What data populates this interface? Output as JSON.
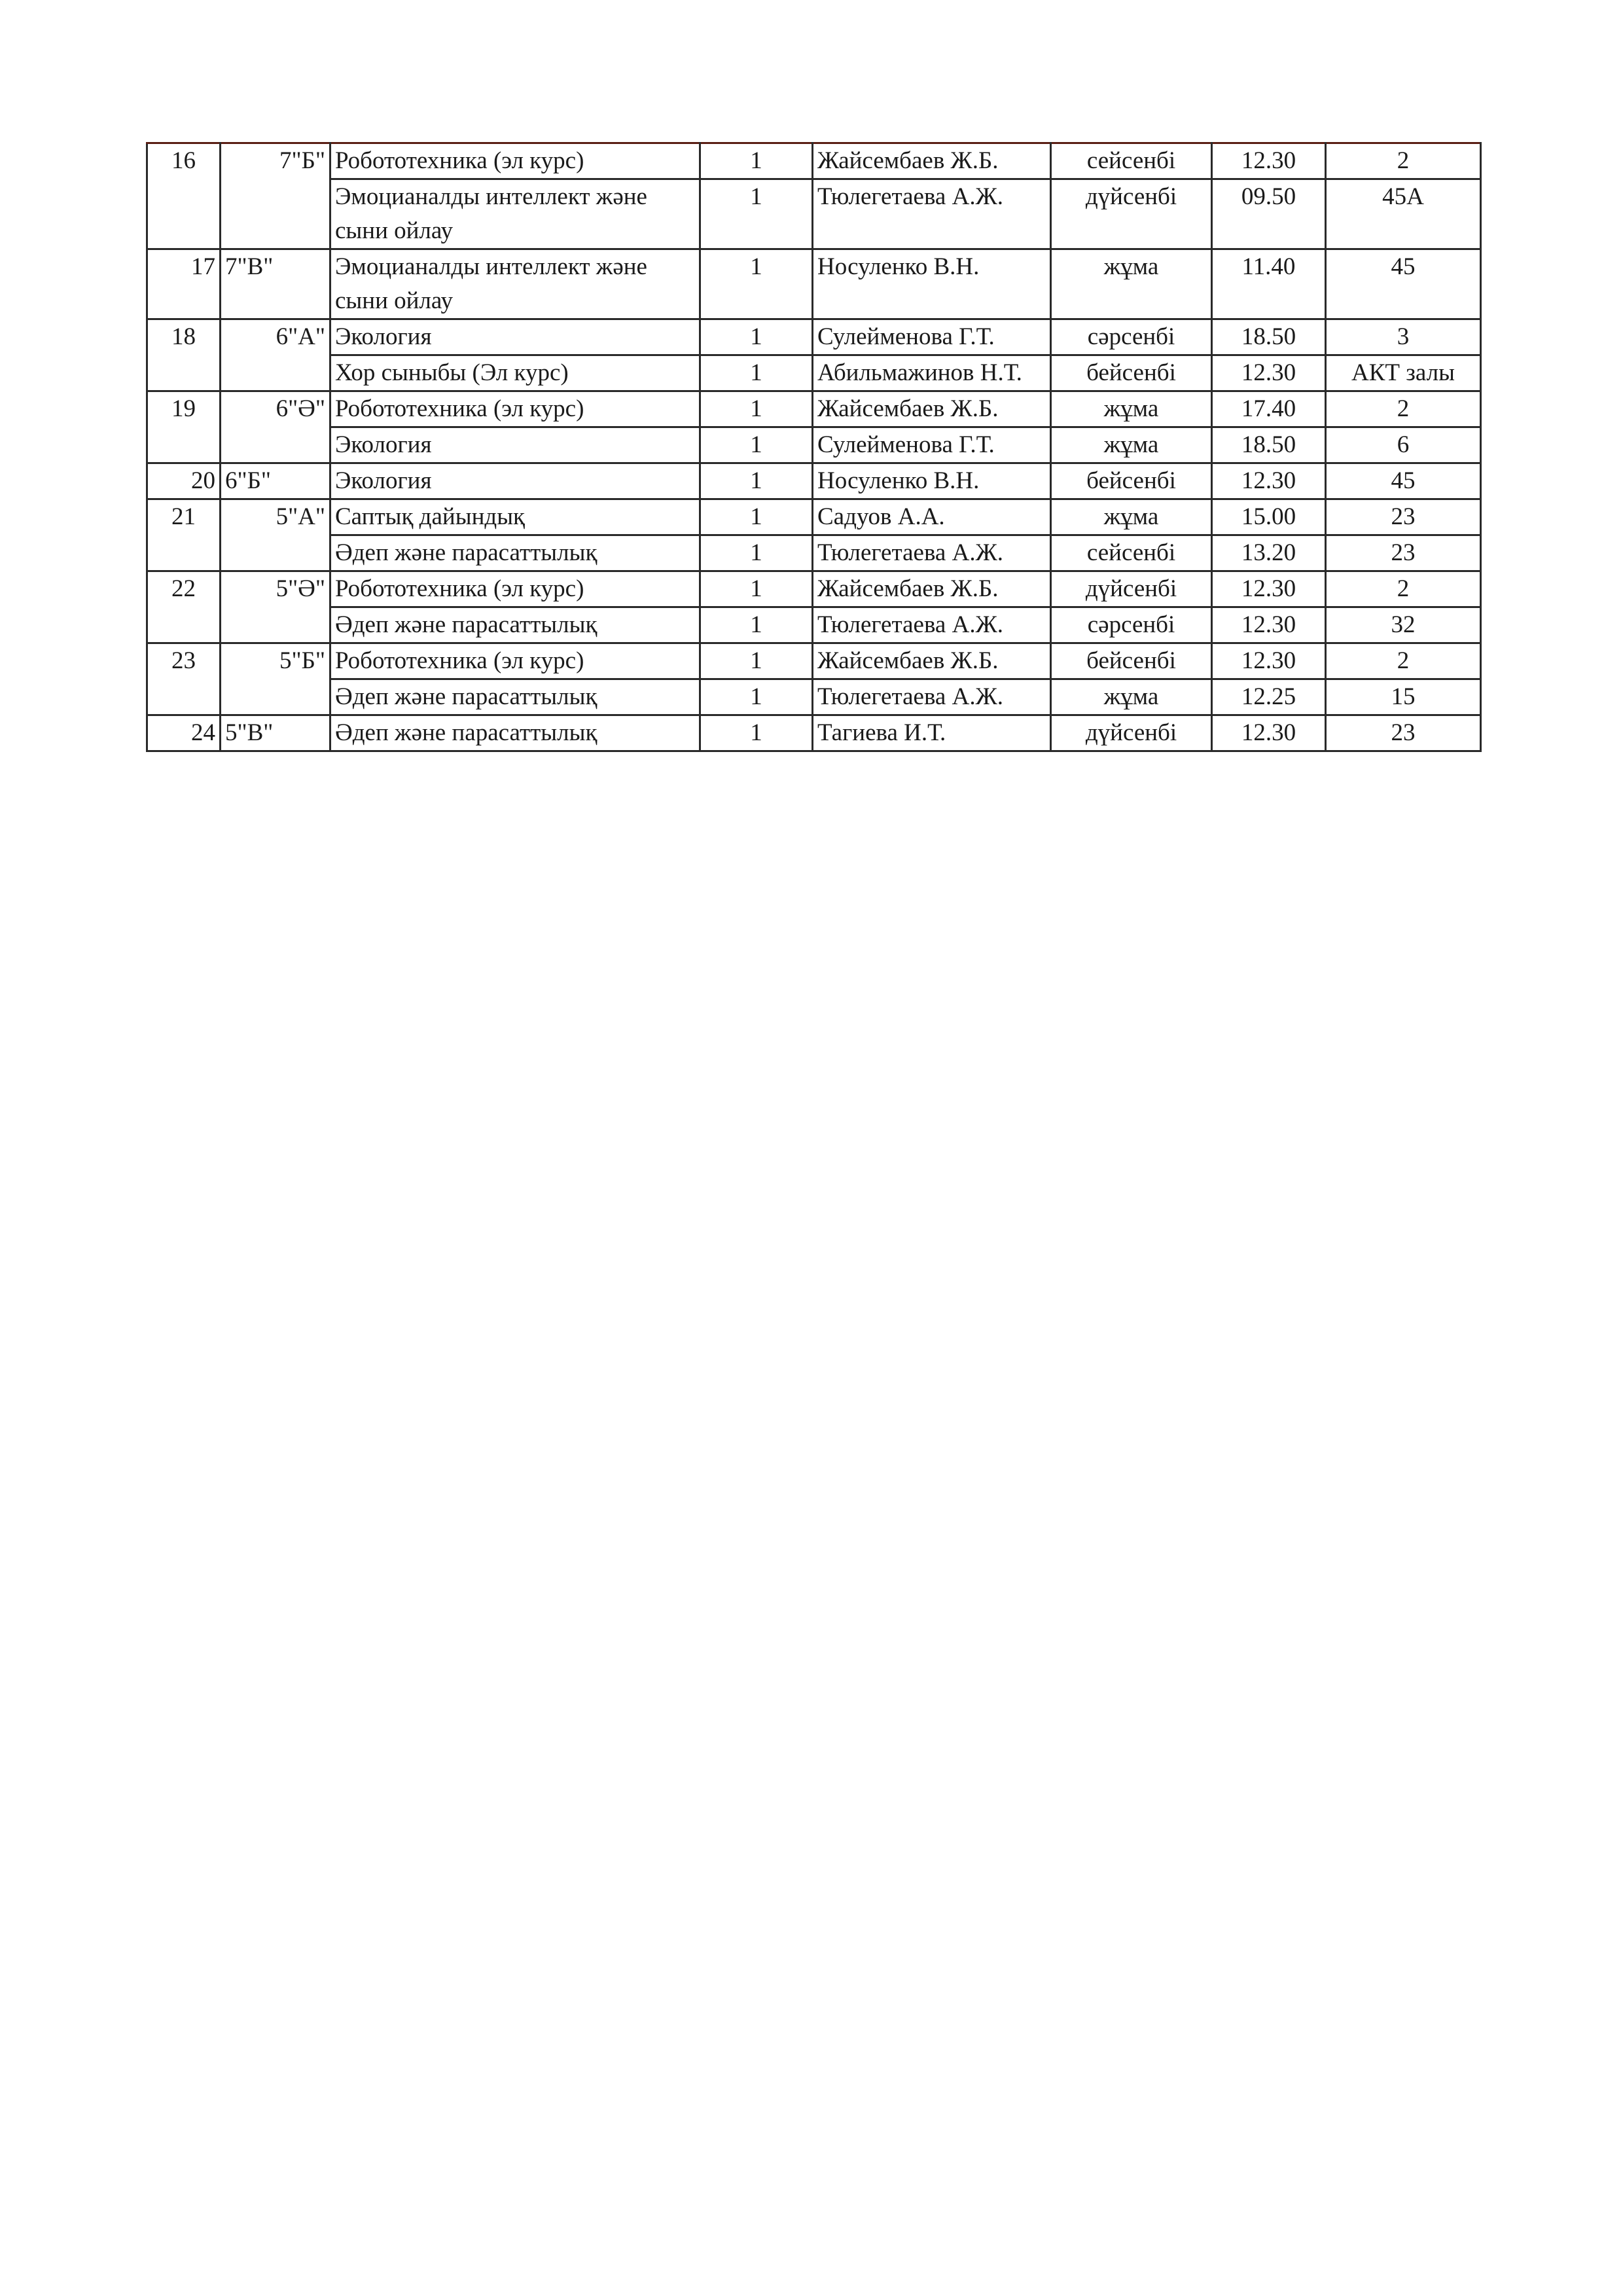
{
  "schedule": [
    {
      "num": "16",
      "class": "7\"Б\"",
      "lessons": [
        {
          "subject": "Робототехника (эл курс)",
          "hours": "1",
          "teacher": "Жайсембаев Ж.Б.",
          "day": "сейсенбі",
          "time": "12.30",
          "room": "2"
        },
        {
          "subject": "Эмоцианалды интеллект және сыни ойлау",
          "hours": "1",
          "teacher": "Тюлегетаева А.Ж.",
          "day": "дүйсенбі",
          "time": "09.50",
          "room": "45А"
        }
      ]
    },
    {
      "num": "17",
      "class": "7\"В\"",
      "lessons": [
        {
          "subject": "Эмоцианалды интеллект және сыни ойлау",
          "hours": "1",
          "teacher": "Носуленко В.Н.",
          "day": "жұма",
          "time": "11.40",
          "room": "45"
        }
      ]
    },
    {
      "num": "18",
      "class": "6\"А\"",
      "lessons": [
        {
          "subject": "Экология",
          "hours": "1",
          "teacher": "Сулейменова Г.Т.",
          "day": "сәрсенбі",
          "time": "18.50",
          "room": "3"
        },
        {
          "subject": "Хор сыныбы (Эл курс)",
          "hours": "1",
          "teacher": "Абильмажинов Н.Т.",
          "day": "бейсенбі",
          "time": "12.30",
          "room": "АКТ залы"
        }
      ]
    },
    {
      "num": "19",
      "class": "6\"Ә\"",
      "lessons": [
        {
          "subject": "Робототехника (эл курс)",
          "hours": "1",
          "teacher": "Жайсембаев Ж.Б.",
          "day": "жұма",
          "time": "17.40",
          "room": "2"
        },
        {
          "subject": "Экология",
          "hours": "1",
          "teacher": "Сулейменова Г.Т.",
          "day": "жұма",
          "time": "18.50",
          "room": "6"
        }
      ]
    },
    {
      "num": "20",
      "class": "6\"Б\"",
      "lessons": [
        {
          "subject": "Экология",
          "hours": "1",
          "teacher": "Носуленко В.Н.",
          "day": "бейсенбі",
          "time": "12.30",
          "room": "45"
        }
      ]
    },
    {
      "num": "21",
      "class": "5\"А\"",
      "lessons": [
        {
          "subject": "Саптық дайындық",
          "hours": "1",
          "teacher": "Садуов А.А.",
          "day": "жұма",
          "time": "15.00",
          "room": "23"
        },
        {
          "subject": "Әдеп және парасаттылық",
          "hours": "1",
          "teacher": "Тюлегетаева А.Ж.",
          "day": "сейсенбі",
          "time": "13.20",
          "room": "23"
        }
      ]
    },
    {
      "num": "22",
      "class": "5\"Ә\"",
      "lessons": [
        {
          "subject": "Робототехника (эл курс)",
          "hours": "1",
          "teacher": "Жайсембаев Ж.Б.",
          "day": "дүйсенбі",
          "time": "12.30",
          "room": "2"
        },
        {
          "subject": "Әдеп және парасаттылық",
          "hours": "1",
          "teacher": "Тюлегетаева А.Ж.",
          "day": "сәрсенбі",
          "time": "12.30",
          "room": "32"
        }
      ]
    },
    {
      "num": "23",
      "class": "5\"Б\"",
      "lessons": [
        {
          "subject": "Робототехника (эл курс)",
          "hours": "1",
          "teacher": "Жайсембаев Ж.Б.",
          "day": "бейсенбі",
          "time": "12.30",
          "room": "2"
        },
        {
          "subject": "Әдеп және парасаттылық",
          "hours": "1",
          "teacher": "Тюлегетаева А.Ж.",
          "day": "жұма",
          "time": "12.25",
          "room": "15"
        }
      ]
    },
    {
      "num": "24",
      "class": "5\"В\"",
      "lessons": [
        {
          "subject": "Әдеп және парасаттылық",
          "hours": "1",
          "teacher": "Тагиева И.Т.",
          "day": "дүйсенбі",
          "time": "12.30",
          "room": "23"
        }
      ]
    }
  ]
}
